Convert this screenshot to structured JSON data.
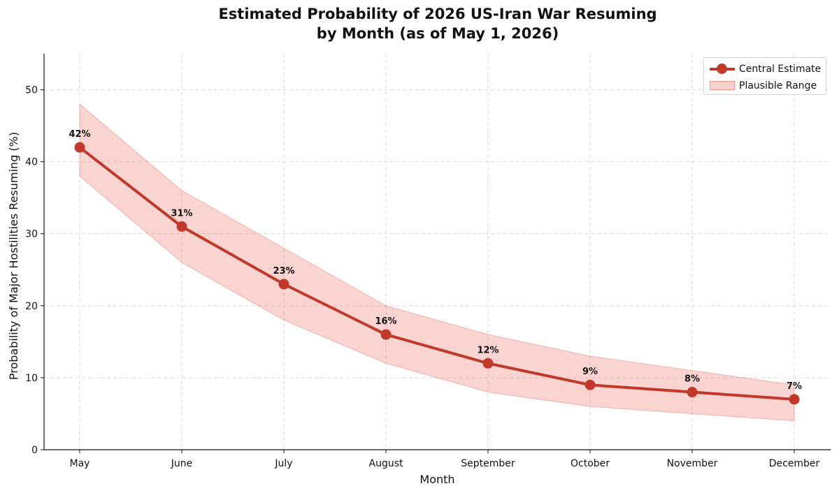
{
  "chart_data": {
    "type": "line",
    "title": [
      "Estimated Probability of 2026 US-Iran War Resuming",
      "by Month (as of May 1, 2026)"
    ],
    "xlabel": "Month",
    "ylabel": "Probability of Major Hostilities Resuming (%)",
    "categories": [
      "May",
      "June",
      "July",
      "August",
      "September",
      "October",
      "November",
      "December"
    ],
    "ylim": [
      0,
      55
    ],
    "yticks": [
      0,
      10,
      20,
      30,
      40,
      50
    ],
    "grid": true,
    "legend_position": "top-right",
    "series": [
      {
        "name": "Central Estimate",
        "values": [
          42,
          31,
          23,
          16,
          12,
          9,
          8,
          7
        ],
        "labels": [
          "42%",
          "31%",
          "23%",
          "16%",
          "12%",
          "9%",
          "8%",
          "7%"
        ],
        "color": "#c0392b"
      }
    ],
    "band": {
      "name": "Plausible Range",
      "lower": [
        38,
        26,
        18,
        12,
        8,
        6,
        5,
        4
      ],
      "upper": [
        48,
        36,
        28,
        20,
        16,
        13,
        11,
        9
      ],
      "color": "#e74c3c"
    }
  }
}
